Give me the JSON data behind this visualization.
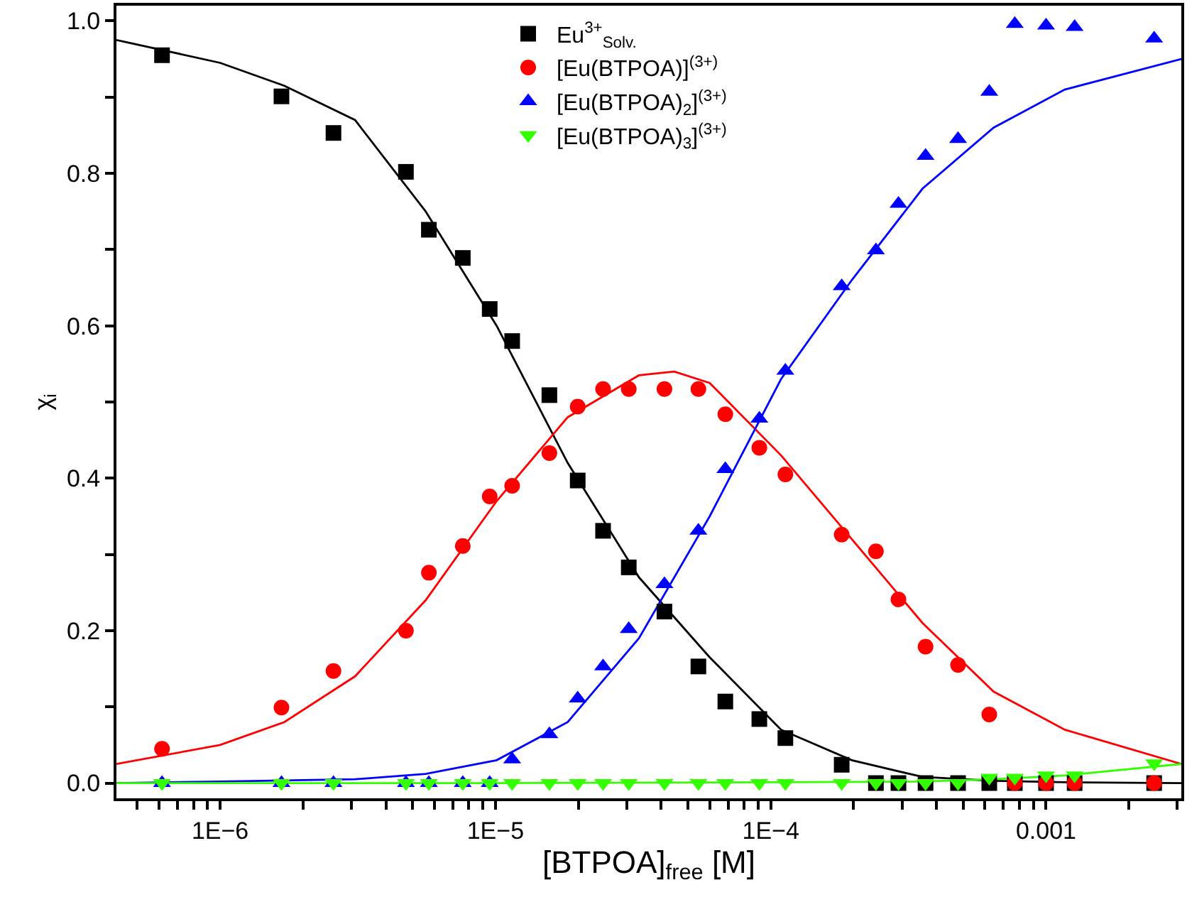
{
  "chart_data": {
    "type": "scatter",
    "xlabel": "[BTPOA]$_{free}$ [M]",
    "ylabel": "χ$_{i}$",
    "log": "x",
    "legend": "top",
    "xlim": [
      4.2e-07,
      0.0031
    ],
    "xticks": [
      {
        "value": 5e-07,
        "label": null
      },
      {
        "value": 6e-07,
        "label": null
      },
      {
        "value": 7e-07,
        "label": null
      },
      {
        "value": 8e-07,
        "label": null
      },
      {
        "value": 9e-07,
        "label": null
      },
      {
        "value": 1e-06,
        "label": "1E−6"
      },
      {
        "value": 2e-06,
        "label": null
      },
      {
        "value": 3e-06,
        "label": null
      },
      {
        "value": 4e-06,
        "label": null
      },
      {
        "value": 5e-06,
        "label": null
      },
      {
        "value": 6e-06,
        "label": null
      },
      {
        "value": 7e-06,
        "label": null
      },
      {
        "value": 8e-06,
        "label": null
      },
      {
        "value": 9e-06,
        "label": null
      },
      {
        "value": 1e-05,
        "label": "1E−5"
      },
      {
        "value": 2e-05,
        "label": null
      },
      {
        "value": 3e-05,
        "label": null
      },
      {
        "value": 4e-05,
        "label": null
      },
      {
        "value": 5e-05,
        "label": null
      },
      {
        "value": 6e-05,
        "label": null
      },
      {
        "value": 7e-05,
        "label": null
      },
      {
        "value": 8e-05,
        "label": null
      },
      {
        "value": 9e-05,
        "label": null
      },
      {
        "value": 0.0001,
        "label": "1E−4"
      },
      {
        "value": 0.0002,
        "label": null
      },
      {
        "value": 0.0003,
        "label": null
      },
      {
        "value": 0.0004,
        "label": null
      },
      {
        "value": 0.0005,
        "label": null
      },
      {
        "value": 0.0006,
        "label": null
      },
      {
        "value": 0.0007,
        "label": null
      },
      {
        "value": 0.0008,
        "label": null
      },
      {
        "value": 0.0009,
        "label": null
      },
      {
        "value": 0.001,
        "label": "0.001"
      },
      {
        "value": 0.002,
        "label": null
      },
      {
        "value": 0.003,
        "label": null
      }
    ],
    "ylim": [
      -0.02,
      1.02
    ],
    "yticks": [
      {
        "value": 0,
        "label": "0.0"
      },
      {
        "value": 0.1,
        "label": null
      },
      {
        "value": 0.2,
        "label": "0.2"
      },
      {
        "value": 0.3,
        "label": null
      },
      {
        "value": 0.4,
        "label": "0.4"
      },
      {
        "value": 0.5,
        "label": null
      },
      {
        "value": 0.6,
        "label": "0.6"
      },
      {
        "value": 0.7,
        "label": null
      },
      {
        "value": 0.8,
        "label": "0.8"
      },
      {
        "value": 0.9,
        "label": null
      },
      {
        "value": 1.0,
        "label": "1.0"
      }
    ],
    "x": [
      6.15e-07,
      1.67e-06,
      2.58e-06,
      4.73e-06,
      5.73e-06,
      7.61e-06,
      9.53e-06,
      1.15e-05,
      1.57e-05,
      1.99e-05,
      2.46e-05,
      3.05e-05,
      4.11e-05,
      5.46e-05,
      6.84e-05,
      9.09e-05,
      0.000113,
      0.000181,
      0.000241,
      0.000291,
      0.000365,
      0.000479,
      0.000622,
      0.00077,
      0.001,
      0.00127,
      0.00247
    ],
    "series": [
      {
        "name": "Eu$^{3+}$$_{Solv.}$",
        "marker": "square",
        "color": "#000000",
        "values": [
          0.955,
          0.901,
          0.853,
          0.802,
          0.726,
          0.689,
          0.622,
          0.58,
          0.509,
          0.397,
          0.331,
          0.283,
          0.225,
          0.153,
          0.107,
          0.084,
          0.059,
          0.024,
          0.0,
          0.0,
          0.0,
          0.0,
          0.0,
          0.0,
          0.0,
          0.0,
          0.0
        ]
      },
      {
        "name": "[Eu(BTPOA)]$^{(3+)}$",
        "marker": "circle",
        "color": "#ff0000",
        "values": [
          0.045,
          0.099,
          0.147,
          0.2,
          0.276,
          0.311,
          0.376,
          0.39,
          0.433,
          0.494,
          0.517,
          0.517,
          0.517,
          0.517,
          0.484,
          0.44,
          0.405,
          0.326,
          0.304,
          0.241,
          0.179,
          0.155,
          0.09,
          0.0,
          0.0,
          0.0,
          0.0
        ]
      },
      {
        "name": "[Eu(BTPOA)$_{2}$]$^{(3+)}$",
        "marker": "triangle",
        "color": "#0000ff",
        "values": [
          0.0,
          0.0,
          0.0,
          0.0,
          0.0,
          0.0,
          0.0,
          0.031,
          0.064,
          0.111,
          0.153,
          0.202,
          0.261,
          0.331,
          0.412,
          0.478,
          0.541,
          0.652,
          0.699,
          0.76,
          0.823,
          0.845,
          0.907,
          0.996,
          0.994,
          0.992,
          0.977
        ]
      },
      {
        "name": "[Eu(BTPOA)$_{3}$]$^{(3+)}$",
        "marker": "triangle-down",
        "color": "#33ff00",
        "values": [
          0.0,
          0.0,
          0.0,
          0.0,
          0.0,
          0.0,
          0.0,
          0.0,
          0.0,
          0.0,
          0.0,
          0.0,
          0.0,
          0.0,
          0.0,
          0.0,
          0.0,
          0.0,
          0.0,
          0.0,
          0.0,
          0.0,
          0.007,
          0.007,
          0.01,
          0.01,
          0.026
        ]
      },
      {
        "type": "line",
        "color": "#000000",
        "x": [
          4.2e-07,
          1e-06,
          1.71e-06,
          3.09e-06,
          5.58e-06,
          1.01e-05,
          1.83e-05,
          3.32e-05,
          6e-05,
          0.000109,
          0.000197,
          0.000356,
          0.000645,
          0.00117,
          0.0031
        ],
        "values": [
          0.975,
          0.945,
          0.915,
          0.87,
          0.75,
          0.6,
          0.42,
          0.27,
          0.165,
          0.07,
          0.03,
          0.008,
          0.003,
          0.001,
          0.0
        ]
      },
      {
        "type": "line",
        "color": "#ff0000",
        "x": [
          4.2e-07,
          1e-06,
          1.71e-06,
          3.09e-06,
          5.58e-06,
          1.01e-05,
          1.83e-05,
          3.32e-05,
          4.46e-05,
          6e-05,
          0.000109,
          0.000197,
          0.000356,
          0.000645,
          0.00117,
          0.0031
        ],
        "values": [
          0.025,
          0.05,
          0.08,
          0.14,
          0.24,
          0.37,
          0.48,
          0.535,
          0.54,
          0.525,
          0.43,
          0.32,
          0.21,
          0.12,
          0.07,
          0.025
        ]
      },
      {
        "type": "line",
        "color": "#0000ff",
        "x": [
          4.2e-07,
          1e-06,
          3.09e-06,
          5.58e-06,
          1.01e-05,
          1.83e-05,
          3.32e-05,
          6e-05,
          0.000109,
          0.000197,
          0.000356,
          0.000645,
          0.00117,
          0.0031
        ],
        "values": [
          0.0,
          0.002,
          0.005,
          0.012,
          0.03,
          0.08,
          0.19,
          0.35,
          0.53,
          0.66,
          0.78,
          0.86,
          0.91,
          0.95
        ]
      },
      {
        "type": "line",
        "color": "#33ff00",
        "x": [
          4.2e-07,
          1e-05,
          0.0001,
          0.000356,
          0.000645,
          0.00117,
          0.0031
        ],
        "values": [
          0.0,
          0.0,
          0.001,
          0.002,
          0.005,
          0.01,
          0.025
        ]
      }
    ]
  }
}
